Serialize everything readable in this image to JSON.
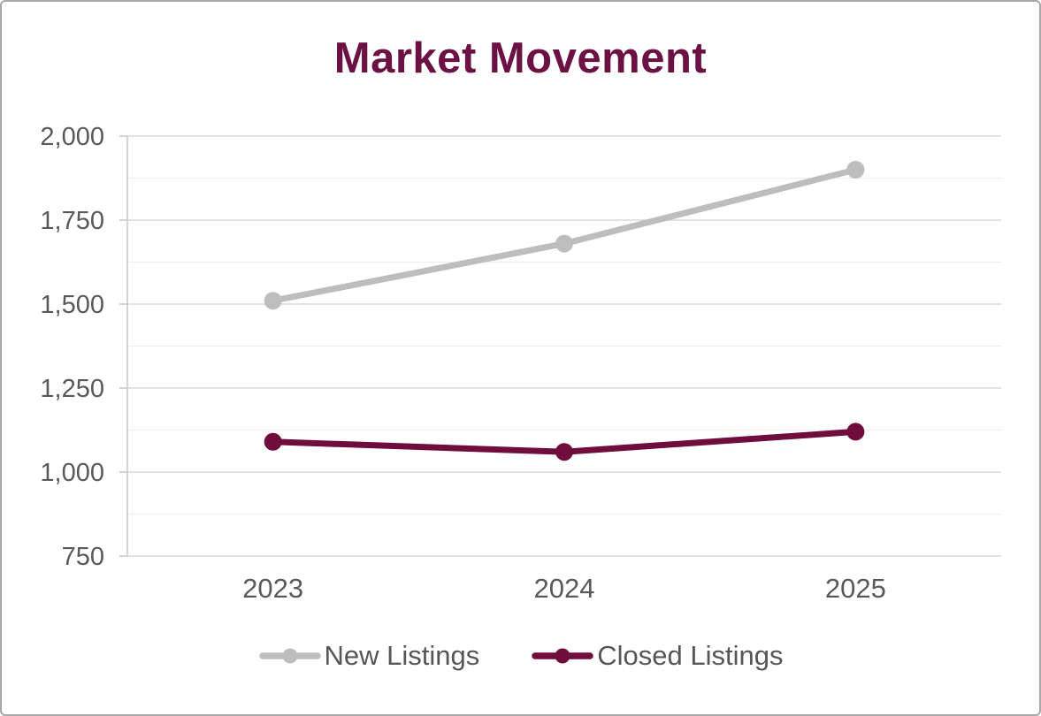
{
  "chart_data": {
    "type": "line",
    "title": "Market Movement",
    "categories": [
      "2023",
      "2024",
      "2025"
    ],
    "series": [
      {
        "name": "New Listings",
        "color": "#bdbdbd",
        "values": [
          1510,
          1680,
          1900
        ]
      },
      {
        "name": "Closed Listings",
        "color": "#6f0d3d",
        "values": [
          1090,
          1060,
          1120
        ]
      }
    ],
    "xlabel": "",
    "ylabel": "",
    "ylim": [
      750,
      2000
    ],
    "y_major_step": 250,
    "y_minor_step": 125,
    "y_tick_labels": [
      "750",
      "1,000",
      "1,250",
      "1,500",
      "1,750",
      "2,000"
    ],
    "grid": true,
    "legend_position": "bottom",
    "colors": {
      "title": "#6c1143",
      "axis_text": "#595959",
      "legend_text": "#565656",
      "grid_major": "#d8d8d8",
      "grid_minor": "#eeeeee",
      "axis_line": "#c6c6c6",
      "background": "#ffffff",
      "outer_border": "#a8a8a8"
    }
  }
}
